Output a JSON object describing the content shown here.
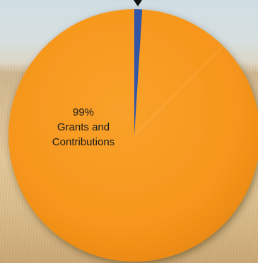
{
  "chart_data": {
    "type": "pie",
    "slices": [
      {
        "label": "Grants and Contributions",
        "percent_label": "99%",
        "value": 99,
        "color": "#f7981e",
        "show_label": true
      },
      {
        "label": "",
        "percent_label": "",
        "value": 1,
        "color": "#3354a6",
        "show_label": false
      }
    ]
  }
}
